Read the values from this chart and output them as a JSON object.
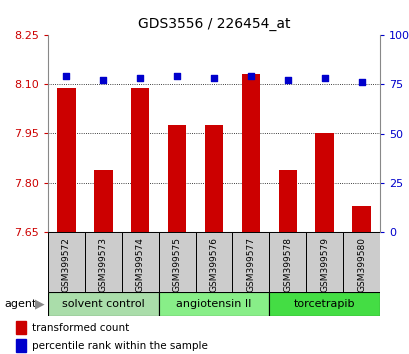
{
  "title": "GDS3556 / 226454_at",
  "samples": [
    "GSM399572",
    "GSM399573",
    "GSM399574",
    "GSM399575",
    "GSM399576",
    "GSM399577",
    "GSM399578",
    "GSM399579",
    "GSM399580"
  ],
  "bar_values": [
    8.09,
    7.84,
    8.09,
    7.975,
    7.975,
    8.13,
    7.84,
    7.95,
    7.73
  ],
  "percentile_values": [
    79,
    77,
    78,
    79,
    78,
    79,
    77,
    78,
    76
  ],
  "ylim_left": [
    7.65,
    8.25
  ],
  "ylim_right": [
    0,
    100
  ],
  "yticks_left": [
    7.65,
    7.8,
    7.95,
    8.1,
    8.25
  ],
  "yticks_right": [
    0,
    25,
    50,
    75,
    100
  ],
  "bar_color": "#cc0000",
  "dot_color": "#0000cc",
  "groups": [
    {
      "label": "solvent control",
      "samples": [
        0,
        1,
        2
      ],
      "color": "#aaddaa"
    },
    {
      "label": "angiotensin II",
      "samples": [
        3,
        4,
        5
      ],
      "color": "#88ee88"
    },
    {
      "label": "torcetrapib",
      "samples": [
        6,
        7,
        8
      ],
      "color": "#44dd44"
    }
  ],
  "agent_label": "agent",
  "legend_bar_label": "transformed count",
  "legend_dot_label": "percentile rank within the sample",
  "tick_label_color_left": "#cc0000",
  "tick_label_color_right": "#0000cc"
}
